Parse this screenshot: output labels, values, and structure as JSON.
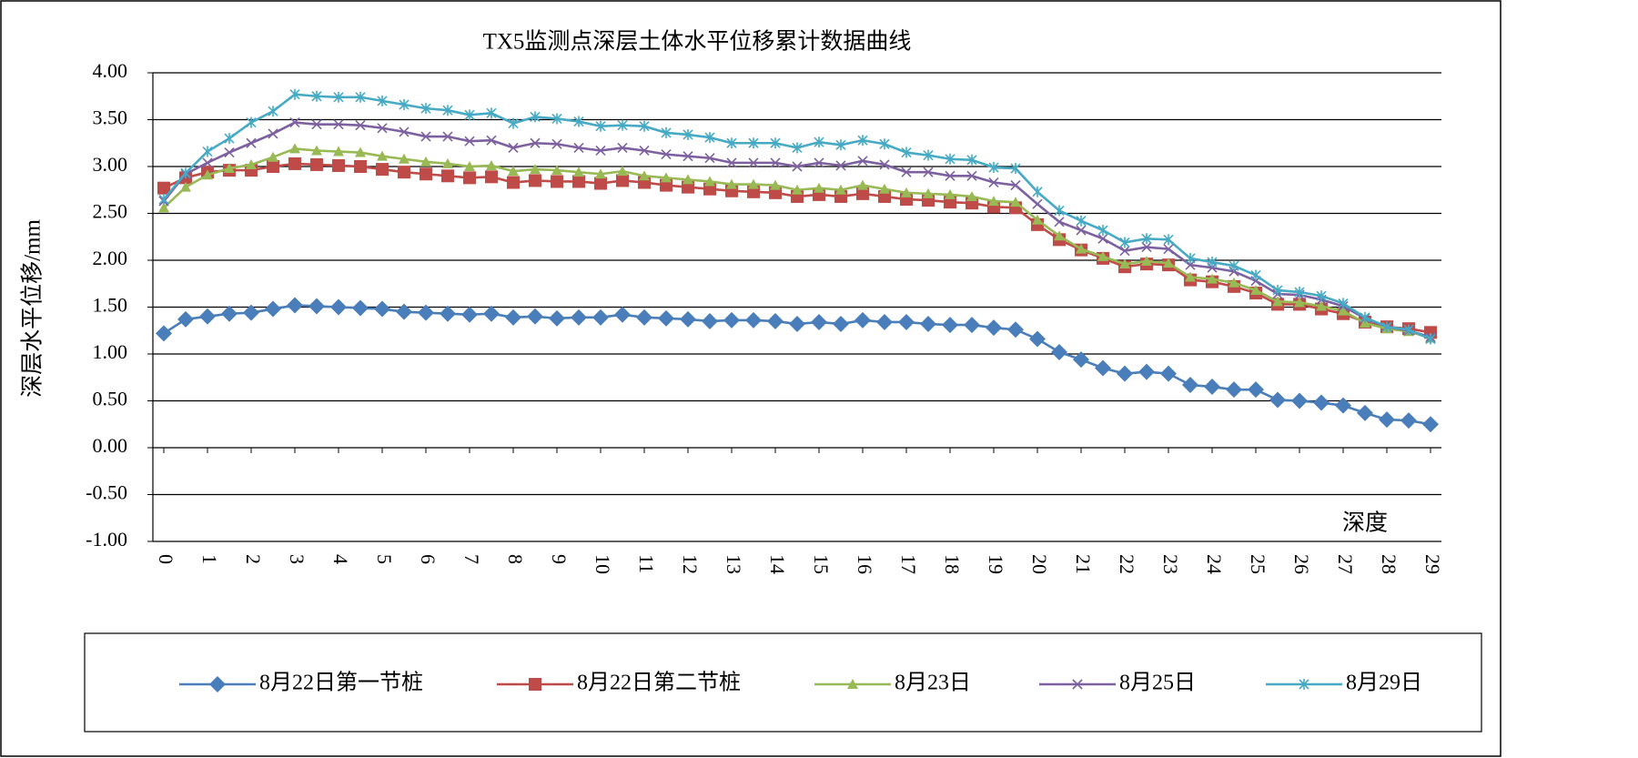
{
  "chart_data": {
    "type": "line",
    "title": "TX5监测点深层土体水平位移累计数据曲线",
    "y_label": "深层水平位移/mm",
    "x_label": "深度",
    "x": [
      0,
      0.5,
      1,
      1.5,
      2,
      2.5,
      3,
      3.5,
      4,
      4.5,
      5,
      5.5,
      6,
      6.5,
      7,
      7.5,
      8,
      8.5,
      9,
      9.5,
      10,
      10.5,
      11,
      11.5,
      12,
      12.5,
      13,
      13.5,
      14,
      14.5,
      15,
      15.5,
      16,
      16.5,
      17,
      17.5,
      18,
      18.5,
      19,
      19.5,
      20,
      20.5,
      21,
      21.5,
      22,
      22.5,
      23,
      23.5,
      24,
      24.5,
      25,
      25.5,
      26,
      26.5,
      27,
      27.5,
      28,
      28.5,
      29
    ],
    "xlim": [
      -0.25,
      29.25
    ],
    "xticks": [
      0,
      1,
      2,
      3,
      4,
      5,
      6,
      7,
      8,
      9,
      10,
      11,
      12,
      13,
      14,
      15,
      16,
      17,
      18,
      19,
      20,
      21,
      22,
      23,
      24,
      25,
      26,
      27,
      28,
      29
    ],
    "ylim": [
      -1,
      4
    ],
    "yticks": [
      {
        "value": -1,
        "label": "-1.00"
      },
      {
        "value": -0.5,
        "label": "-0.50"
      },
      {
        "value": 0,
        "label": "0.00"
      },
      {
        "value": 0.5,
        "label": "0.50"
      },
      {
        "value": 1,
        "label": "1.00"
      },
      {
        "value": 1.5,
        "label": "1.50"
      },
      {
        "value": 2,
        "label": "2.00"
      },
      {
        "value": 2.5,
        "label": "2.50"
      },
      {
        "value": 3,
        "label": "3.00"
      },
      {
        "value": 3.5,
        "label": "3.50"
      },
      {
        "value": 4,
        "label": "4.00"
      }
    ],
    "grid": true,
    "legend": "bottom",
    "series": [
      {
        "name": "8月22日第一节桩",
        "color": "#4a7ebb",
        "marker": "diamond",
        "values": [
          1.22,
          1.37,
          1.4,
          1.43,
          1.44,
          1.48,
          1.52,
          1.51,
          1.5,
          1.49,
          1.48,
          1.45,
          1.44,
          1.43,
          1.42,
          1.43,
          1.39,
          1.4,
          1.38,
          1.39,
          1.39,
          1.42,
          1.39,
          1.38,
          1.37,
          1.35,
          1.36,
          1.36,
          1.35,
          1.32,
          1.34,
          1.32,
          1.36,
          1.34,
          1.34,
          1.32,
          1.31,
          1.31,
          1.28,
          1.26,
          1.16,
          1.02,
          0.94,
          0.85,
          0.79,
          0.81,
          0.79,
          0.67,
          0.65,
          0.62,
          0.62,
          0.51,
          0.5,
          0.48,
          0.45,
          0.37,
          0.3,
          0.29,
          0.25
        ]
      },
      {
        "name": "8月22日第二节桩",
        "color": "#be4b48",
        "marker": "square",
        "values": [
          2.77,
          2.88,
          2.94,
          2.96,
          2.96,
          3.0,
          3.03,
          3.02,
          3.01,
          3.0,
          2.97,
          2.94,
          2.92,
          2.9,
          2.88,
          2.89,
          2.83,
          2.85,
          2.84,
          2.84,
          2.82,
          2.85,
          2.83,
          2.8,
          2.78,
          2.76,
          2.74,
          2.73,
          2.72,
          2.68,
          2.7,
          2.68,
          2.71,
          2.68,
          2.65,
          2.64,
          2.62,
          2.61,
          2.57,
          2.56,
          2.38,
          2.22,
          2.11,
          2.02,
          1.93,
          1.96,
          1.95,
          1.79,
          1.77,
          1.72,
          1.65,
          1.53,
          1.53,
          1.48,
          1.43,
          1.34,
          1.29,
          1.27,
          1.23
        ]
      },
      {
        "name": "8月23日",
        "color": "#98b954",
        "marker": "triangle",
        "values": [
          2.56,
          2.78,
          2.91,
          2.98,
          3.02,
          3.1,
          3.19,
          3.17,
          3.16,
          3.15,
          3.11,
          3.08,
          3.05,
          3.03,
          3.0,
          3.01,
          2.95,
          2.97,
          2.96,
          2.94,
          2.92,
          2.95,
          2.9,
          2.88,
          2.86,
          2.84,
          2.81,
          2.81,
          2.8,
          2.75,
          2.77,
          2.75,
          2.8,
          2.76,
          2.72,
          2.71,
          2.7,
          2.68,
          2.63,
          2.62,
          2.43,
          2.26,
          2.12,
          2.04,
          1.96,
          1.99,
          1.97,
          1.82,
          1.8,
          1.76,
          1.68,
          1.56,
          1.55,
          1.51,
          1.46,
          1.33,
          1.27,
          1.24,
          1.17
        ]
      },
      {
        "name": "8月25日",
        "color": "#7d60a0",
        "marker": "x",
        "values": [
          2.63,
          2.92,
          3.04,
          3.15,
          3.25,
          3.35,
          3.47,
          3.45,
          3.45,
          3.44,
          3.41,
          3.37,
          3.32,
          3.32,
          3.27,
          3.28,
          3.2,
          3.25,
          3.24,
          3.2,
          3.17,
          3.2,
          3.17,
          3.13,
          3.11,
          3.09,
          3.04,
          3.04,
          3.04,
          3.0,
          3.04,
          3.01,
          3.06,
          3.02,
          2.94,
          2.94,
          2.9,
          2.9,
          2.83,
          2.8,
          2.6,
          2.41,
          2.32,
          2.23,
          2.1,
          2.14,
          2.12,
          1.95,
          1.92,
          1.88,
          1.78,
          1.64,
          1.63,
          1.58,
          1.51,
          1.38,
          1.29,
          1.25,
          1.18
        ]
      },
      {
        "name": "8月29日",
        "color": "#46aac5",
        "marker": "star",
        "values": [
          2.65,
          2.93,
          3.16,
          3.3,
          3.47,
          3.59,
          3.77,
          3.75,
          3.74,
          3.74,
          3.7,
          3.66,
          3.62,
          3.6,
          3.55,
          3.57,
          3.46,
          3.53,
          3.51,
          3.48,
          3.43,
          3.44,
          3.43,
          3.36,
          3.34,
          3.31,
          3.25,
          3.25,
          3.25,
          3.2,
          3.26,
          3.23,
          3.28,
          3.24,
          3.15,
          3.12,
          3.08,
          3.07,
          2.99,
          2.98,
          2.73,
          2.53,
          2.42,
          2.32,
          2.19,
          2.23,
          2.22,
          2.02,
          1.98,
          1.94,
          1.84,
          1.68,
          1.66,
          1.62,
          1.54,
          1.39,
          1.29,
          1.26,
          1.16
        ]
      }
    ]
  }
}
